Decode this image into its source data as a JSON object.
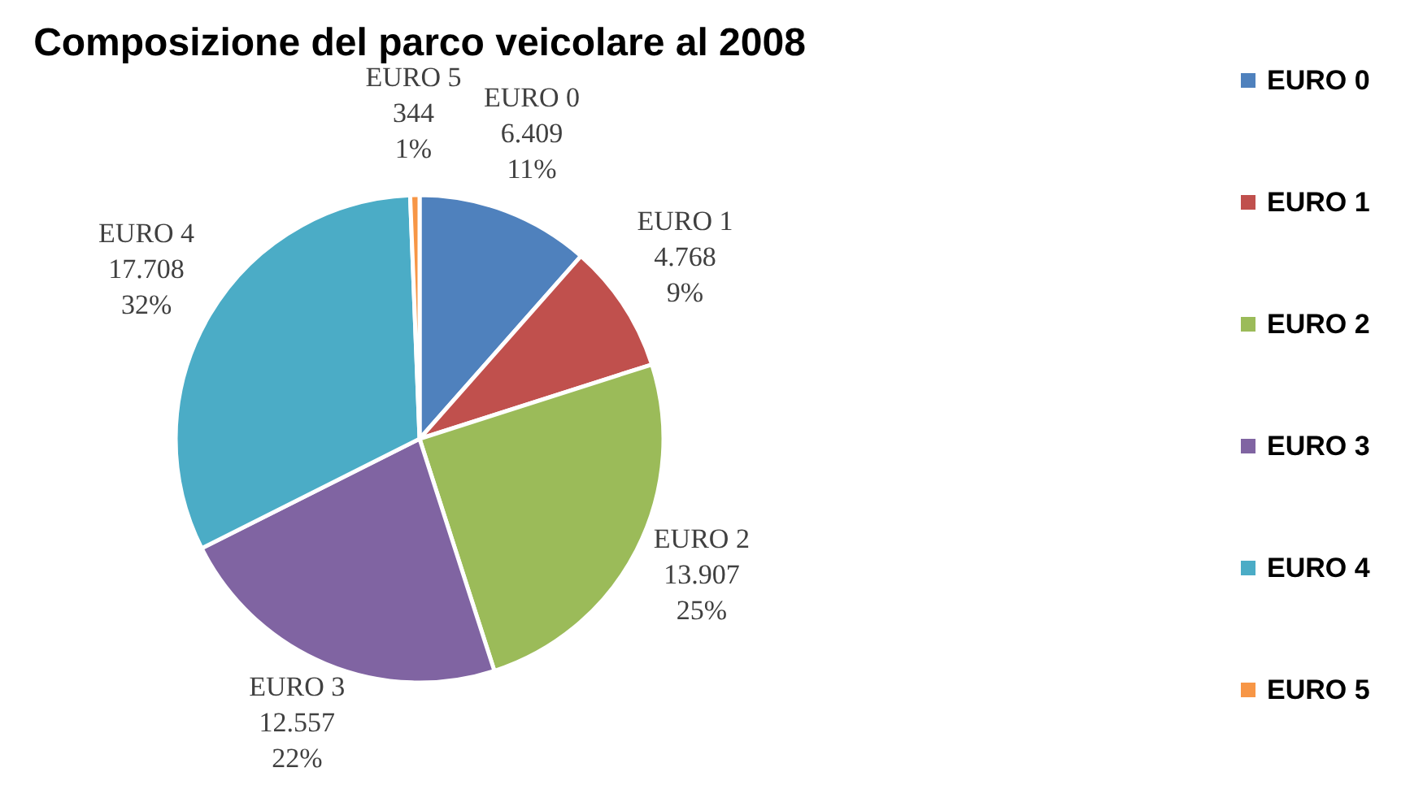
{
  "chart_data": {
    "type": "pie",
    "title": "Composizione del parco veicolare al 2008",
    "categories": [
      "EURO 0",
      "EURO 1",
      "EURO 2",
      "EURO 3",
      "EURO 4",
      "EURO 5"
    ],
    "values": [
      6409,
      4768,
      13907,
      12557,
      17708,
      344
    ],
    "colors": [
      "#4f81bd",
      "#c0504d",
      "#9bbb59",
      "#8064a2",
      "#4bacc6",
      "#f79646"
    ],
    "value_labels": [
      "6.409\n11%",
      "4.768\n9%",
      "13.907\n25%",
      "12.557\n22%",
      "17.708\n32%",
      "344\n1%"
    ],
    "legend": "right"
  }
}
